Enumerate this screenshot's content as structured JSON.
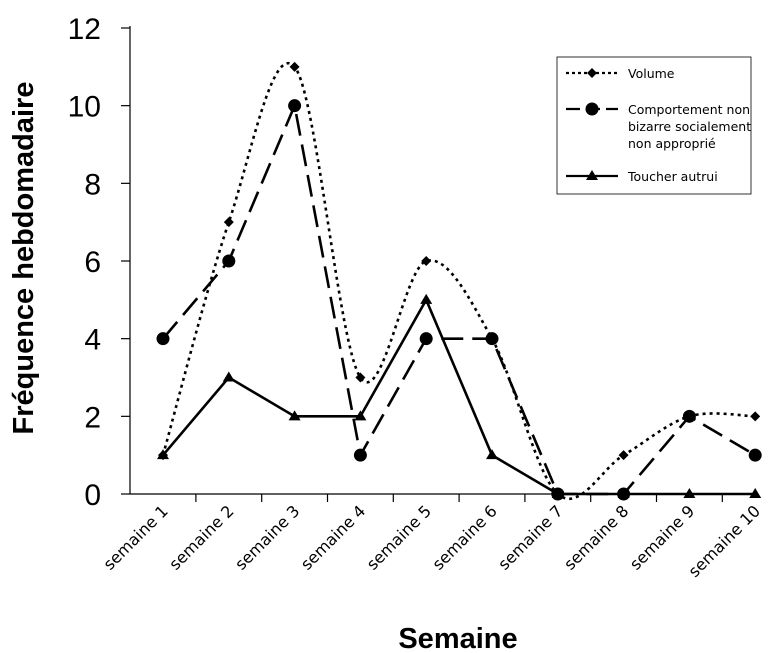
{
  "chart_data": {
    "type": "line",
    "title": "",
    "xlabel": "Semaine",
    "ylabel": "Fréquence hebdomadaire",
    "ylim": [
      0,
      12
    ],
    "yticks": [
      "0",
      "2",
      "4",
      "6",
      "8",
      "10",
      "12"
    ],
    "categories": [
      "semaine 1",
      "semaine 2",
      "semaine 3",
      "semaine 4",
      "semaine 5",
      "semaine 6",
      "semaine 7",
      "semaine 8",
      "semaine 9",
      "semaine 10"
    ],
    "grid": false,
    "legend_position": "top-right",
    "series": [
      {
        "name": "Volume",
        "values": [
          1,
          7,
          11,
          3,
          6,
          4,
          0,
          1,
          2,
          2
        ],
        "line_style": "dotted",
        "marker": "diamond",
        "smooth": true,
        "color": "#000000"
      },
      {
        "name": "Comportement non bizarre socialement non approprié",
        "legend_lines": [
          "Comportement non",
          "bizarre socialement",
          "non approprié"
        ],
        "values": [
          4,
          6,
          10,
          1,
          4,
          4,
          0,
          0,
          2,
          1
        ],
        "line_style": "dashed",
        "marker": "circle",
        "smooth": false,
        "color": "#000000"
      },
      {
        "name": "Toucher autrui",
        "values": [
          1,
          3,
          2,
          2,
          5,
          1,
          0,
          0,
          0,
          0
        ],
        "line_style": "solid",
        "marker": "triangle",
        "smooth": false,
        "color": "#000000"
      }
    ]
  }
}
